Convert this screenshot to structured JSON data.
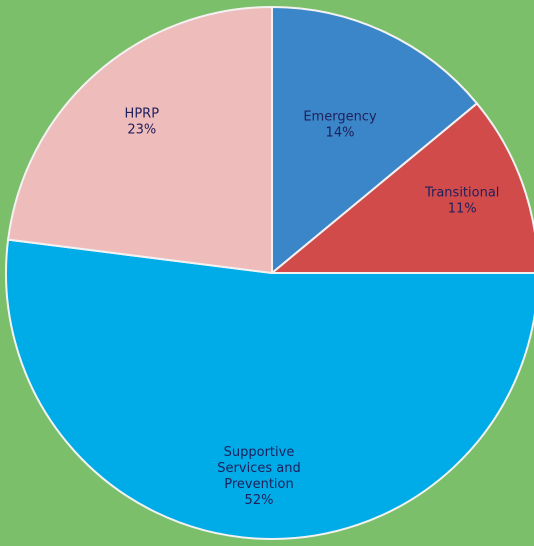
{
  "chart_data": {
    "type": "pie",
    "colors": {
      "background": "#7cbf6a",
      "slice_border": "#f2f2f2"
    },
    "slices": [
      {
        "label_lines": [
          "Emergency",
          "14%"
        ],
        "value": 14,
        "color": "#3b86c8"
      },
      {
        "label_lines": [
          "Transitional",
          "11%"
        ],
        "value": 11,
        "color": "#d24b4b"
      },
      {
        "label_lines": [
          "Supportive",
          "Services and",
          "Prevention",
          "52%"
        ],
        "value": 52,
        "color": "#00ace7"
      },
      {
        "label_lines": [
          "HPRP",
          "23%"
        ],
        "value": 23,
        "color": "#efbcbc"
      }
    ]
  }
}
